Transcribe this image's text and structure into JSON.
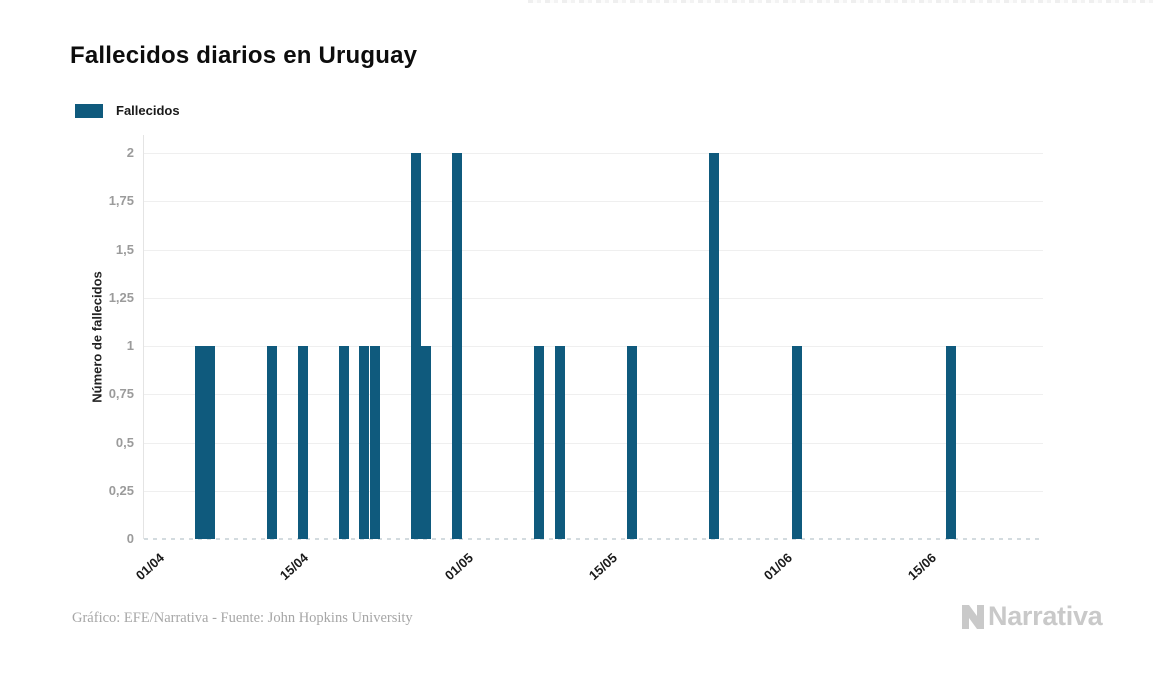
{
  "page": {
    "title": "Fallecidos diarios en Uruguay",
    "background": "#ffffff"
  },
  "legend": {
    "label": "Fallecidos"
  },
  "footer": {
    "credit": "Gráfico: EFE/Narrativa - Fuente: John Hopkins University",
    "logo_text": "Narrativa"
  },
  "colors": {
    "bar": "#0F5A7D",
    "grid": "#efefef",
    "axis_line": "#e4e4e4",
    "baseline_dash": "#d3dbdf",
    "y_tick_text": "#9b9b9b",
    "x_tick_text": "#1a1a1a",
    "title_text": "#0d0d0d",
    "footer_text": "#a6a6a6",
    "logo_gray": "#c9c9c9"
  },
  "chart_data": {
    "type": "bar",
    "title": "Fallecidos diarios en Uruguay",
    "xlabel": "",
    "ylabel": "Número de fallecidos",
    "ylim": [
      0,
      2
    ],
    "grid": true,
    "legend_position": "top-left",
    "x_ticks": [
      "01/04",
      "15/04",
      "01/05",
      "15/05",
      "01/06",
      "15/06"
    ],
    "y_ticks": [
      {
        "label": "2",
        "value": 2
      },
      {
        "label": "1,75",
        "value": 1.75
      },
      {
        "label": "1,5",
        "value": 1.5
      },
      {
        "label": "1,25",
        "value": 1.25
      },
      {
        "label": "1",
        "value": 1
      },
      {
        "label": "0,75",
        "value": 0.75
      },
      {
        "label": "0,5",
        "value": 0.5
      },
      {
        "label": "0,25",
        "value": 0.25
      },
      {
        "label": "0",
        "value": 0
      }
    ],
    "x_domain_days_from_01_04": [
      -0.4,
      86.9
    ],
    "series": [
      {
        "name": "Fallecidos",
        "color": "#0F5A7D",
        "points": [
          {
            "date": "06/04",
            "value": 1
          },
          {
            "date": "07/04",
            "value": 1
          },
          {
            "date": "13/04",
            "value": 1
          },
          {
            "date": "16/04",
            "value": 1
          },
          {
            "date": "20/04",
            "value": 1
          },
          {
            "date": "22/04",
            "value": 1
          },
          {
            "date": "23/04",
            "value": 1
          },
          {
            "date": "27/04",
            "value": 2
          },
          {
            "date": "28/04",
            "value": 1
          },
          {
            "date": "01/05",
            "value": 2
          },
          {
            "date": "09/05",
            "value": 1
          },
          {
            "date": "11/05",
            "value": 1
          },
          {
            "date": "18/05",
            "value": 1
          },
          {
            "date": "26/05",
            "value": 2
          },
          {
            "date": "03/06",
            "value": 1
          },
          {
            "date": "18/06",
            "value": 1
          }
        ]
      }
    ]
  }
}
